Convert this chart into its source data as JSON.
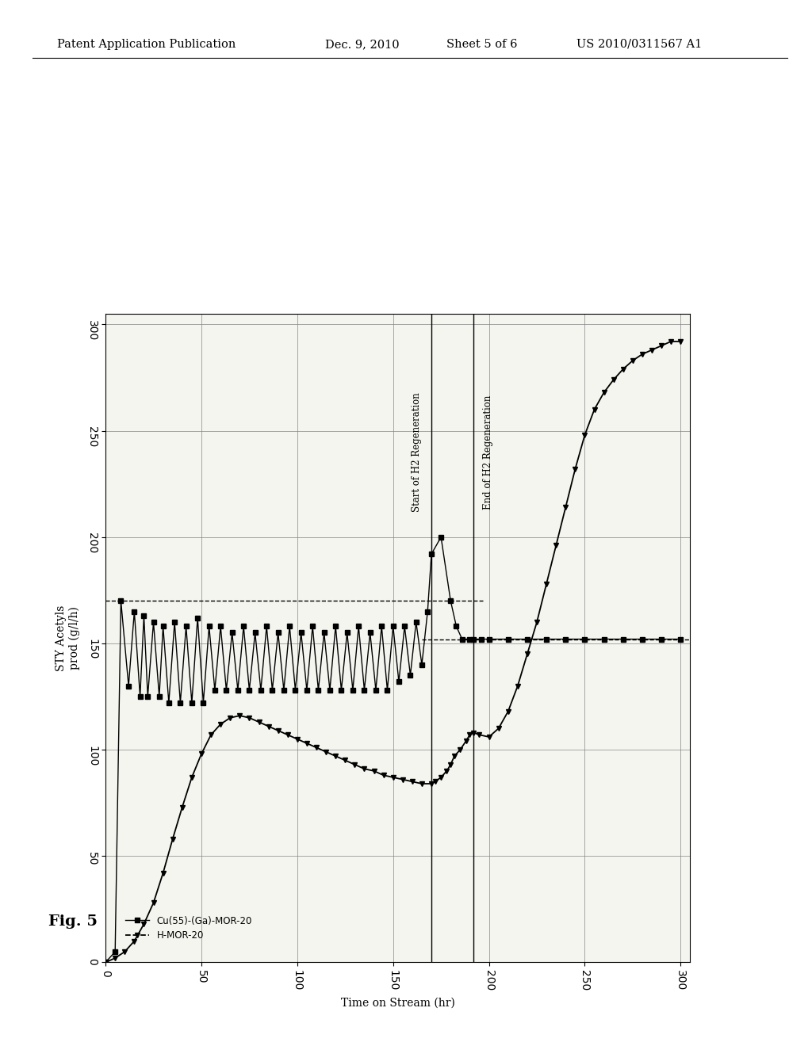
{
  "title_header": "Patent Application Publication",
  "title_date": "Dec. 9, 2010",
  "title_sheet": "Sheet 5 of 6",
  "title_patent": "US 2010/0311567 A1",
  "fig_label": "Fig. 5",
  "xlabel_rotated": "Time on Stream (hr)",
  "ylabel_rotated": "STY Acetyls\nprod (g/l/h)",
  "xlim": [
    0,
    305
  ],
  "ylim": [
    0,
    305
  ],
  "xticks": [
    0,
    50,
    100,
    150,
    200,
    250,
    300
  ],
  "yticks": [
    0,
    50,
    100,
    150,
    200,
    250,
    300
  ],
  "vline_start_regen": 170,
  "vline_end_regen": 192,
  "annotation_start": "Start of H2 Regeneration",
  "annotation_end": "End of H2 Regeneration",
  "legend_label1": "Cu(55)-(Ga)-MOR-20",
  "legend_label2": "H-MOR-20",
  "s1_x": [
    0,
    5,
    8,
    12,
    15,
    18,
    20,
    22,
    25,
    28,
    30,
    33,
    36,
    39,
    42,
    45,
    48,
    51,
    54,
    57,
    60,
    63,
    66,
    69,
    72,
    75,
    78,
    81,
    84,
    87,
    90,
    93,
    96,
    99,
    102,
    105,
    108,
    111,
    114,
    117,
    120,
    123,
    126,
    129,
    132,
    135,
    138,
    141,
    144,
    147,
    150,
    153,
    156,
    159,
    162,
    165,
    168,
    170,
    175,
    180,
    183,
    186,
    190,
    192,
    196,
    200,
    210,
    220,
    230,
    240,
    250,
    260,
    270,
    280,
    290,
    300
  ],
  "s1_y": [
    0,
    5,
    170,
    130,
    165,
    125,
    163,
    125,
    160,
    125,
    158,
    122,
    160,
    122,
    158,
    122,
    162,
    122,
    158,
    128,
    158,
    128,
    155,
    128,
    158,
    128,
    155,
    128,
    158,
    128,
    155,
    128,
    158,
    128,
    155,
    128,
    158,
    128,
    155,
    128,
    158,
    128,
    155,
    128,
    158,
    128,
    155,
    128,
    158,
    128,
    158,
    132,
    158,
    135,
    160,
    140,
    165,
    192,
    200,
    170,
    158,
    152,
    152,
    152,
    152,
    152,
    152,
    152,
    152,
    152,
    152,
    152,
    152,
    152,
    152,
    152
  ],
  "s2_x": [
    0,
    5,
    10,
    15,
    20,
    25,
    30,
    35,
    40,
    45,
    50,
    55,
    60,
    65,
    70,
    75,
    80,
    85,
    90,
    95,
    100,
    105,
    110,
    115,
    120,
    125,
    130,
    135,
    140,
    145,
    150,
    155,
    160,
    165,
    170,
    172,
    175,
    178,
    180,
    182,
    185,
    188,
    190,
    192,
    195,
    200,
    205,
    210,
    215,
    220,
    225,
    230,
    235,
    240,
    245,
    250,
    255,
    260,
    265,
    270,
    275,
    280,
    285,
    290,
    295,
    300
  ],
  "s2_y": [
    0,
    2,
    5,
    10,
    18,
    28,
    42,
    58,
    73,
    87,
    98,
    107,
    112,
    115,
    116,
    115,
    113,
    111,
    109,
    107,
    105,
    103,
    101,
    99,
    97,
    95,
    93,
    91,
    90,
    88,
    87,
    86,
    85,
    84,
    84,
    85,
    87,
    90,
    93,
    97,
    100,
    104,
    107,
    108,
    107,
    106,
    110,
    118,
    130,
    145,
    160,
    178,
    196,
    214,
    232,
    248,
    260,
    268,
    274,
    279,
    283,
    286,
    288,
    290,
    292,
    292
  ],
  "dashed_h1_y": 170,
  "dashed_h2_y": 152,
  "background_color": "#f5f5f0"
}
